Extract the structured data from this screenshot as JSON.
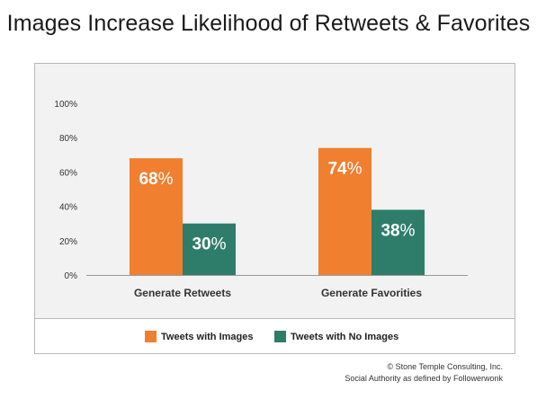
{
  "title": "Images Increase Likelihood of Retweets & Favorites",
  "colors": {
    "series_with_images": "#f07f30",
    "series_no_images": "#2e7d6b"
  },
  "chart_data": {
    "type": "bar",
    "categories": [
      "Generate Retweets",
      "Generate Favorities"
    ],
    "series": [
      {
        "name": "Tweets with Images",
        "values": [
          68,
          74
        ],
        "labels": [
          "68",
          "74"
        ]
      },
      {
        "name": "Tweets with No Images",
        "values": [
          30,
          38
        ],
        "labels": [
          "30",
          "38"
        ]
      }
    ],
    "ylim": [
      0,
      100
    ],
    "yticks": [
      "0%",
      "20%",
      "40%",
      "60%",
      "80%",
      "100%"
    ],
    "value_suffix": "%",
    "grid": false,
    "legend_position": "bottom"
  },
  "footer": {
    "line1": "© Stone Temple Consulting, Inc.",
    "line2": "Social Authority as defined by Followerwonk"
  }
}
